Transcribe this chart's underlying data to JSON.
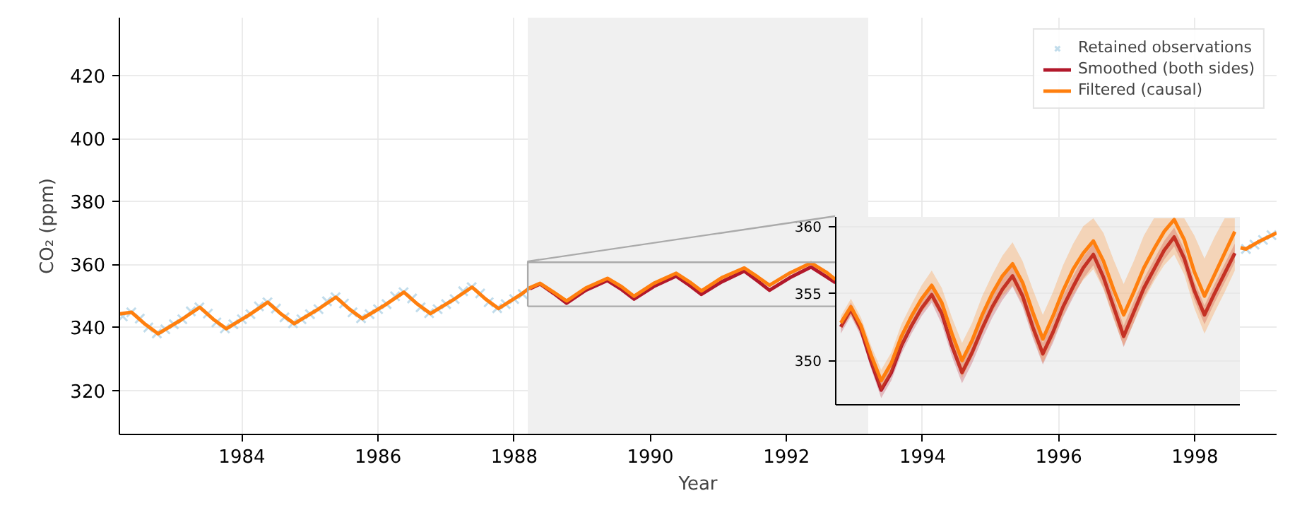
{
  "chart_data": [
    {
      "type": "line",
      "xlabel": "Year",
      "ylabel": "CO₂ (ppm)",
      "xlim": [
        1982.2,
        1999.2
      ],
      "ylim": [
        306,
        438.4
      ],
      "xticks": [
        1984,
        1986,
        1988,
        1990,
        1992,
        1994,
        1996,
        1998
      ],
      "yticks": [
        320,
        340,
        360,
        380,
        400,
        420
      ],
      "grid": true,
      "legend": "top right",
      "bands": [
        {
          "axis": "x",
          "from": 1988.2,
          "to": 1993.2,
          "color": "#f0f0f0"
        }
      ],
      "series": [
        {
          "name": "Retained observations",
          "type": "scatter",
          "marker": "cross",
          "color": "#a6cde3",
          "x": [
            1982.25,
            1982.375,
            1982.5,
            1982.625,
            1982.75,
            1982.875,
            1983.0,
            1983.125,
            1983.25,
            1983.375,
            1983.5,
            1983.625,
            1983.75,
            1983.875,
            1984.0,
            1984.125,
            1984.25,
            1984.375,
            1984.5,
            1984.625,
            1984.75,
            1984.875,
            1985.0,
            1985.125,
            1985.25,
            1985.375,
            1985.5,
            1985.625,
            1985.75,
            1985.875,
            1986.0,
            1986.125,
            1986.25,
            1986.375,
            1986.5,
            1986.625,
            1986.75,
            1986.875,
            1987.0,
            1987.125,
            1987.25,
            1987.375,
            1987.5,
            1987.625,
            1987.75,
            1987.875,
            1988.0,
            1988.125,
            1998.75,
            1998.875,
            1999.0,
            1999.125
          ],
          "values": [
            343.5,
            344.8,
            342.8,
            340.0,
            338.1,
            339.4,
            341.0,
            342.6,
            345.1,
            346.4,
            344.4,
            341.6,
            339.7,
            341.0,
            342.6,
            344.2,
            346.7,
            348.0,
            346.0,
            343.2,
            341.3,
            342.6,
            344.2,
            345.8,
            348.3,
            349.6,
            347.6,
            344.8,
            342.9,
            344.2,
            345.8,
            347.4,
            349.9,
            351.2,
            349.2,
            346.4,
            344.5,
            345.8,
            347.4,
            349.0,
            351.5,
            352.8,
            350.8,
            348.0,
            346.1,
            347.4,
            349.0,
            350.6,
            364.9,
            366.3,
            367.8,
            369.3
          ]
        },
        {
          "name": "Smoothed (both sides)",
          "color": "#b2182b",
          "x": [
            1988.23,
            1988.38,
            1988.58,
            1988.77,
            1989.05,
            1989.37,
            1989.58,
            1989.76,
            1990.05,
            1990.38,
            1990.58,
            1990.75,
            1991.05,
            1991.38,
            1991.58,
            1991.75,
            1992.05,
            1992.36,
            1992.58,
            1992.72
          ],
          "values": [
            352.3,
            353.8,
            350.8,
            347.7,
            351.8,
            354.9,
            352.0,
            349.0,
            353.0,
            356.3,
            353.3,
            350.5,
            354.5,
            357.9,
            354.7,
            351.8,
            355.8,
            359.2,
            356.2,
            354.2
          ]
        },
        {
          "name": "Filtered (causal)",
          "color": "#ff7f0e",
          "x": [
            1982.21,
            1982.38,
            1982.58,
            1982.77,
            1983.1,
            1983.38,
            1983.58,
            1983.77,
            1984.1,
            1984.38,
            1984.58,
            1984.77,
            1985.1,
            1985.38,
            1985.58,
            1985.77,
            1986.1,
            1986.38,
            1986.58,
            1986.77,
            1987.1,
            1987.38,
            1987.58,
            1987.77,
            1988.1,
            1988.23,
            1988.38,
            1988.58,
            1988.77,
            1989.05,
            1989.37,
            1989.58,
            1989.76,
            1990.05,
            1990.38,
            1990.58,
            1990.75,
            1991.05,
            1991.38,
            1991.58,
            1991.75,
            1992.05,
            1992.36,
            1992.58,
            1992.72,
            1995.0,
            1998.67,
            1998.75,
            1998.95,
            1999.2
          ],
          "values": [
            344.3,
            344.8,
            341.0,
            338.0,
            342.3,
            346.4,
            342.6,
            339.6,
            343.9,
            348.0,
            344.2,
            341.2,
            345.5,
            349.6,
            345.8,
            342.8,
            347.1,
            351.2,
            347.4,
            344.4,
            348.7,
            352.8,
            349.0,
            346.0,
            350.5,
            352.6,
            354.0,
            351.2,
            348.4,
            352.5,
            355.6,
            352.9,
            349.9,
            354.0,
            357.2,
            354.4,
            351.6,
            355.8,
            358.9,
            356.0,
            353.4,
            357.3,
            360.5,
            357.6,
            355.2,
            null,
            365.3,
            364.9,
            367.4,
            370.0
          ]
        }
      ]
    },
    {
      "type": "line",
      "categories": [
        null,
        null,
        null,
        null,
        null,
        null,
        null,
        null,
        null,
        null,
        null,
        null,
        null,
        null,
        null,
        null,
        null,
        null,
        null,
        null,
        null,
        null,
        null,
        null,
        null,
        null,
        null,
        null,
        null,
        null,
        null,
        null,
        null,
        null,
        null,
        null,
        null,
        null,
        null,
        null
      ],
      "ylim": [
        346.7,
        360.7
      ],
      "yticks": [
        350,
        355,
        360
      ],
      "grid": "y",
      "series": [
        {
          "color": "#b2182b",
          "values": [
            352.5,
            353.8,
            352.3,
            349.9,
            347.8,
            349.1,
            351.1,
            352.6,
            353.9,
            354.9,
            353.5,
            351.1,
            349.1,
            350.6,
            352.4,
            354.0,
            355.3,
            356.3,
            354.8,
            352.5,
            350.5,
            352.1,
            354.0,
            355.5,
            356.9,
            357.9,
            356.2,
            354.0,
            351.8,
            353.6,
            355.4,
            356.8,
            358.2,
            359.2,
            357.6,
            355.2,
            353.4,
            355.0,
            356.5,
            358.0
          ],
          "lower": [
            352.0,
            353.3,
            351.8,
            349.4,
            347.2,
            348.5,
            350.5,
            352.0,
            353.3,
            354.3,
            352.7,
            350.3,
            348.3,
            349.8,
            351.6,
            353.2,
            354.5,
            355.5,
            354.0,
            351.7,
            349.7,
            351.3,
            353.2,
            354.7,
            356.1,
            357.1,
            355.4,
            353.2,
            351.0,
            352.8,
            354.7,
            356.1,
            357.5,
            358.5,
            356.9,
            354.5,
            352.7,
            354.3,
            355.8,
            357.3
          ],
          "upper": [
            353.0,
            354.3,
            352.8,
            350.4,
            348.4,
            349.7,
            351.7,
            353.2,
            354.5,
            355.5,
            354.3,
            351.9,
            349.9,
            351.4,
            353.2,
            354.8,
            356.1,
            357.1,
            355.6,
            353.3,
            351.3,
            352.9,
            354.8,
            356.3,
            357.7,
            358.7,
            357.0,
            354.8,
            352.6,
            354.4,
            356.1,
            357.5,
            358.9,
            359.9,
            358.3,
            355.9,
            354.1,
            355.7,
            357.2,
            358.7
          ]
        },
        {
          "color": "#ff7f0e",
          "values": [
            352.8,
            354.0,
            352.6,
            350.4,
            348.5,
            349.8,
            351.8,
            353.3,
            354.6,
            355.6,
            354.3,
            352.0,
            350.0,
            351.5,
            353.4,
            355.0,
            356.3,
            357.2,
            355.8,
            353.6,
            351.6,
            353.3,
            355.2,
            356.8,
            358.0,
            358.9,
            357.4,
            355.3,
            353.4,
            355.1,
            356.9,
            358.3,
            359.6,
            360.5,
            359.0,
            356.6,
            354.8,
            356.4,
            358.0,
            359.6
          ],
          "lower": [
            352.3,
            353.4,
            352.0,
            349.7,
            347.7,
            349.0,
            350.9,
            352.4,
            353.6,
            354.5,
            353.2,
            350.8,
            348.7,
            350.2,
            352.0,
            353.6,
            354.8,
            355.6,
            354.2,
            351.9,
            349.8,
            351.5,
            353.3,
            354.9,
            356.0,
            356.8,
            355.3,
            353.1,
            351.1,
            352.8,
            354.5,
            355.9,
            357.1,
            357.9,
            356.4,
            353.9,
            352.0,
            353.6,
            355.1,
            356.7
          ],
          "upper": [
            353.3,
            354.6,
            353.2,
            351.1,
            349.3,
            350.6,
            352.7,
            354.2,
            355.6,
            356.7,
            355.4,
            353.2,
            351.3,
            352.8,
            354.8,
            356.4,
            357.8,
            358.8,
            357.4,
            355.3,
            353.4,
            355.1,
            357.1,
            358.7,
            360.0,
            360.6,
            359.5,
            357.5,
            355.7,
            357.4,
            359.3,
            360.6,
            360.6,
            360.6,
            360.6,
            359.3,
            357.6,
            359.2,
            360.6,
            360.6
          ]
        }
      ]
    }
  ]
}
